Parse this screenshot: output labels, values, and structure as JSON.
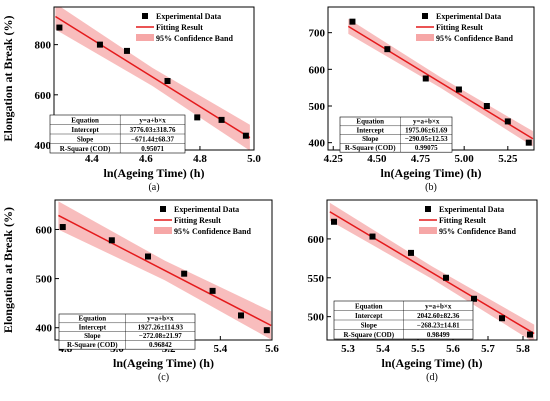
{
  "chart_data": [
    {
      "type": "scatter",
      "panel_label": "(a)",
      "xlabel": "ln(Ageing Time) (h)",
      "ylabel": "Elongation at Break (%)",
      "xlim": [
        4.26,
        5.0
      ],
      "ylim": [
        380,
        950
      ],
      "xticks": [
        "4.4",
        "4.6",
        "4.8",
        "5.0"
      ],
      "yticks": [
        "400",
        "600",
        "800"
      ],
      "legend": {
        "placement": "top-right",
        "entries": [
          "Experimental Data",
          "Fitting Result",
          "95% Confidence Band"
        ]
      },
      "series": [
        {
          "name": "Experimental Data",
          "x": [
            4.28,
            4.43,
            4.53,
            4.68,
            4.79,
            4.88,
            4.97
          ],
          "y": [
            868,
            800,
            775,
            655,
            510,
            500,
            437
          ]
        }
      ],
      "fit": {
        "intercept": 3776.03,
        "slope": -671.44
      },
      "band_halfwidth": 45,
      "table": {
        "rows": [
          [
            "Equation",
            "y=a+b×x"
          ],
          [
            "Intercept",
            "3776.03±318.76"
          ],
          [
            "Slope",
            "−671.44±68.37"
          ],
          [
            "R-Square (COD)",
            "0.95071"
          ]
        ]
      }
    },
    {
      "type": "scatter",
      "panel_label": "(b)",
      "xlabel": "ln(Ageing Time) (h)",
      "ylabel": "",
      "xlim": [
        4.22,
        5.4
      ],
      "ylim": [
        380,
        770
      ],
      "xticks": [
        "4.25",
        "4.50",
        "4.75",
        "5.00",
        "5.25"
      ],
      "yticks": [
        "400",
        "500",
        "600",
        "700"
      ],
      "legend": {
        "placement": "top-right",
        "entries": [
          "Experimental Data",
          "Fitting Result",
          "95% Confidence Band"
        ]
      },
      "series": [
        {
          "name": "Experimental Data",
          "x": [
            4.36,
            4.56,
            4.78,
            4.97,
            5.13,
            5.25,
            5.37
          ],
          "y": [
            730,
            655,
            575,
            545,
            500,
            458,
            400
          ]
        }
      ],
      "fit": {
        "intercept": 1975.06,
        "slope": -290.05
      },
      "band_halfwidth": 18,
      "table": {
        "rows": [
          [
            "Equation",
            "y=a+b×x"
          ],
          [
            "Intercept",
            "1975.06±61.69"
          ],
          [
            "Slope",
            "−290.05±12.53"
          ],
          [
            "R-Square (COD)",
            "0.99075"
          ]
        ]
      }
    },
    {
      "type": "scatter",
      "panel_label": "(c)",
      "xlabel": "ln(Ageing Time) (h)",
      "ylabel": "Elongation at Break (%)",
      "xlim": [
        4.76,
        5.6
      ],
      "ylim": [
        375,
        660
      ],
      "xticks": [
        "4.8",
        "5.0",
        "5.2",
        "5.4",
        "5.6"
      ],
      "yticks": [
        "400",
        "500",
        "600"
      ],
      "legend": {
        "placement": "top-right",
        "entries": [
          "Experimental Data",
          "Fitting Result",
          "95% Confidence Band"
        ]
      },
      "series": [
        {
          "name": "Experimental Data",
          "x": [
            4.79,
            4.98,
            5.12,
            5.26,
            5.37,
            5.48,
            5.58
          ],
          "y": [
            605,
            578,
            545,
            510,
            475,
            425,
            395
          ]
        }
      ],
      "fit": {
        "intercept": 1927.26,
        "slope": -272.08
      },
      "band_halfwidth": 25,
      "table": {
        "rows": [
          [
            "Equation",
            "y=a+b×x"
          ],
          [
            "Intercept",
            "1927.26±114.93"
          ],
          [
            "Slope",
            "−272.08±21.97"
          ],
          [
            "R-Square (COD)",
            "0.96842"
          ]
        ]
      }
    },
    {
      "type": "scatter",
      "panel_label": "(d)",
      "xlabel": "ln(Ageing Time) (h)",
      "ylabel": "",
      "xlim": [
        5.24,
        5.84
      ],
      "ylim": [
        470,
        650
      ],
      "xticks": [
        "5.3",
        "5.4",
        "5.5",
        "5.6",
        "5.7",
        "5.8"
      ],
      "yticks": [
        "500",
        "550",
        "600"
      ],
      "legend": {
        "placement": "top-right",
        "entries": [
          "Experimental Data",
          "Fitting Result",
          "95% Confidence Band"
        ]
      },
      "series": [
        {
          "name": "Experimental Data",
          "x": [
            5.26,
            5.37,
            5.48,
            5.58,
            5.66,
            5.74,
            5.82
          ],
          "y": [
            622,
            603,
            582,
            550,
            523,
            498,
            477
          ]
        }
      ],
      "fit": {
        "intercept": 2042.6,
        "slope": -268.23
      },
      "band_halfwidth": 10,
      "table": {
        "rows": [
          [
            "Equation",
            "y=a+b×x"
          ],
          [
            "Intercept",
            "2042.60±82.36"
          ],
          [
            "Slope",
            "−268.23±14.81"
          ],
          [
            "R-Square (COD)",
            "0.98499"
          ]
        ]
      }
    }
  ],
  "colors": {
    "fit_line": "#e41a1c",
    "band": "#f6a7a7",
    "marker": "#000000",
    "axis": "#000000"
  }
}
